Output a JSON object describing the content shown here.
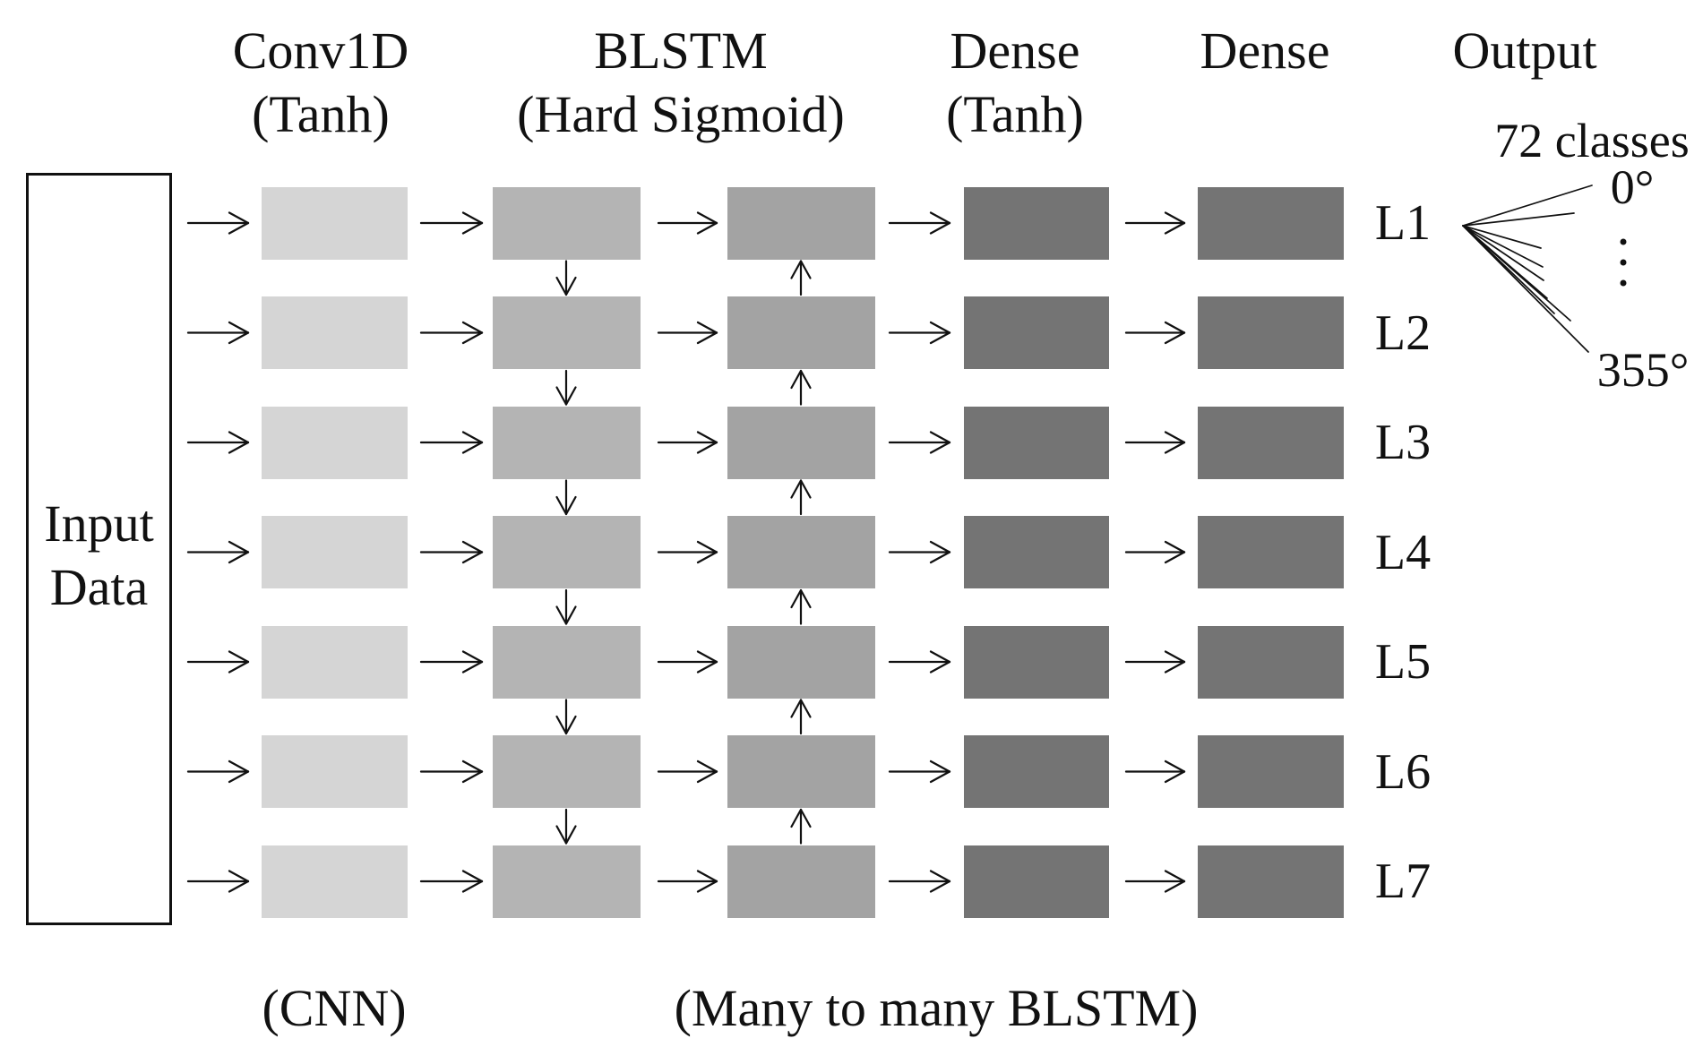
{
  "headers": {
    "conv1d": {
      "line1": "Conv1D",
      "line2": "(Tanh)"
    },
    "blstm": {
      "line1": "BLSTM",
      "line2": "(Hard Sigmoid)"
    },
    "dense1": {
      "line1": "Dense",
      "line2": "(Tanh)"
    },
    "dense2": {
      "line1": "Dense"
    },
    "output": {
      "line1": "Output"
    }
  },
  "input_box": {
    "line1": "Input",
    "line2": "Data"
  },
  "row_labels": [
    "L1",
    "L2",
    "L3",
    "L4",
    "L5",
    "L6",
    "L7"
  ],
  "output_annotation": {
    "classes": "72 classes",
    "first_class": "0°",
    "ellipsis_dot_count": 3,
    "last_class": "355°"
  },
  "captions": {
    "cnn": "(CNN)",
    "many_to_many": "(Many to many BLSTM)"
  },
  "colors": {
    "conv_box": "#d5d5d5",
    "blstm_forward_box": "#b4b4b4",
    "blstm_backward_box": "#a3a3a3",
    "dense_box": "#747474",
    "line": "#111111",
    "background": "#ffffff"
  }
}
